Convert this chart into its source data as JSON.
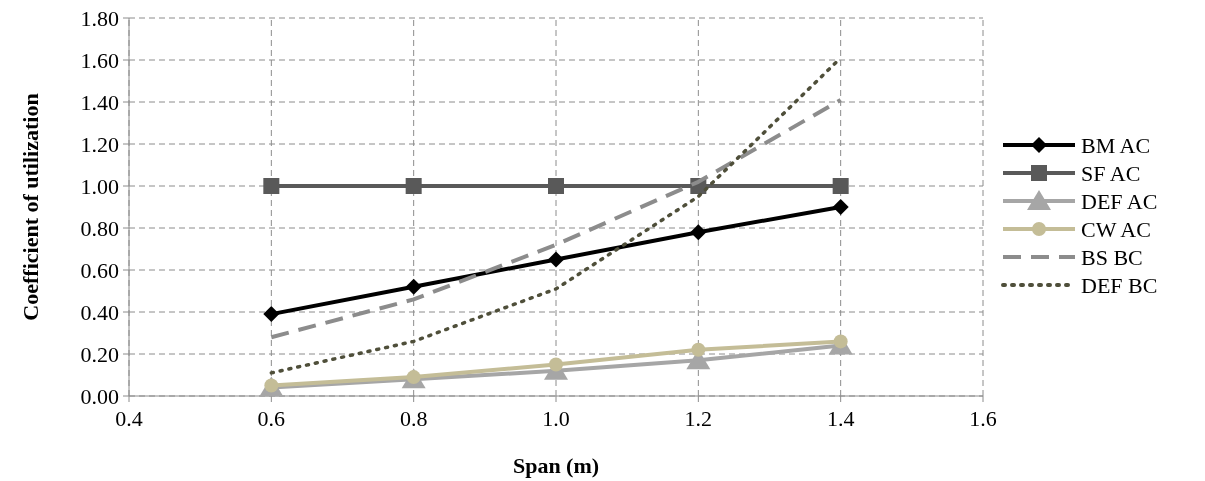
{
  "chart_data": {
    "type": "line",
    "xlabel": "Span (m)",
    "ylabel": "Coefficient of utilization",
    "x": [
      0.6,
      0.8,
      1.0,
      1.2,
      1.4
    ],
    "xlim": [
      0.4,
      1.6
    ],
    "xticks": [
      {
        "value": 0.4,
        "label": "0.4"
      },
      {
        "value": 0.6,
        "label": "0.6"
      },
      {
        "value": 0.8,
        "label": "0.8"
      },
      {
        "value": 1.0,
        "label": "1.0"
      },
      {
        "value": 1.2,
        "label": "1.2"
      },
      {
        "value": 1.4,
        "label": "1.4"
      },
      {
        "value": 1.6,
        "label": "1.6"
      }
    ],
    "ylim": [
      0,
      1.8
    ],
    "yticks": [
      {
        "value": 0,
        "label": "0.00"
      },
      {
        "value": 0.2,
        "label": "0.20"
      },
      {
        "value": 0.4,
        "label": "0.40"
      },
      {
        "value": 0.6,
        "label": "0.60"
      },
      {
        "value": 0.8,
        "label": "0.80"
      },
      {
        "value": 1.0,
        "label": "1.00"
      },
      {
        "value": 1.2,
        "label": "1.20"
      },
      {
        "value": 1.4,
        "label": "1.40"
      },
      {
        "value": 1.6,
        "label": "1.60"
      },
      {
        "value": 1.8,
        "label": "1.80"
      }
    ],
    "grid": true,
    "legend": "right",
    "series": [
      {
        "name": "BM AC",
        "color": "#000000",
        "marker": "diamond",
        "line_style": "solid",
        "values": [
          0.39,
          0.52,
          0.65,
          0.78,
          0.9
        ]
      },
      {
        "name": "SF AC",
        "color": "#595959",
        "marker": "square",
        "line_style": "solid",
        "values": [
          1.0,
          1.0,
          1.0,
          1.0,
          1.0
        ]
      },
      {
        "name": "DEF AC",
        "color": "#a6a6a6",
        "marker": "triangle",
        "line_style": "solid",
        "values": [
          0.04,
          0.08,
          0.12,
          0.17,
          0.24
        ]
      },
      {
        "name": "CW AC",
        "color": "#c4bd97",
        "marker": "circle",
        "line_style": "solid",
        "values": [
          0.05,
          0.09,
          0.15,
          0.22,
          0.26
        ]
      },
      {
        "name": "BS BC",
        "color": "#8c8c8c",
        "marker": "none",
        "line_style": "dashed",
        "values": [
          0.28,
          0.46,
          0.72,
          1.02,
          1.41
        ]
      },
      {
        "name": "DEF BC",
        "color": "#4f4f3a",
        "marker": "none",
        "line_style": "dotted",
        "values": [
          0.11,
          0.26,
          0.51,
          0.95,
          1.61
        ]
      }
    ]
  }
}
